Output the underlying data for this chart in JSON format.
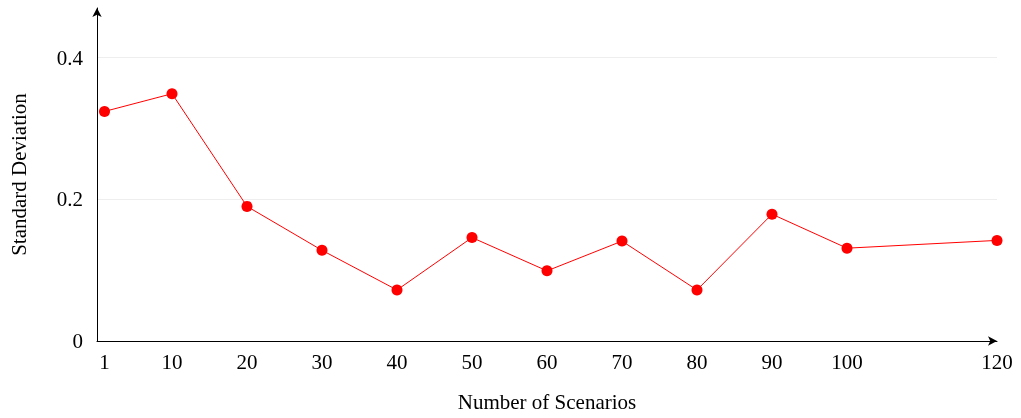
{
  "chart_data": {
    "type": "line",
    "xlabel": "Number of Scenarios",
    "ylabel": "Standard Deviation",
    "x": [
      1,
      10,
      20,
      30,
      40,
      50,
      60,
      70,
      80,
      90,
      100,
      120
    ],
    "series": [
      {
        "color": "#ff0000",
        "values": [
          0.324,
          0.349,
          0.19,
          0.128,
          0.072,
          0.146,
          0.099,
          0.141,
          0.072,
          0.179,
          0.131,
          0.142
        ]
      }
    ],
    "xlim": [
      0,
      120
    ],
    "xticks": [
      1,
      10,
      20,
      30,
      40,
      50,
      60,
      70,
      80,
      90,
      100,
      120
    ],
    "ylim": [
      0,
      0.47
    ],
    "yticks": [
      0,
      0.2,
      0.4
    ],
    "grid": "y",
    "marker": "circle",
    "line_style": "solid"
  }
}
